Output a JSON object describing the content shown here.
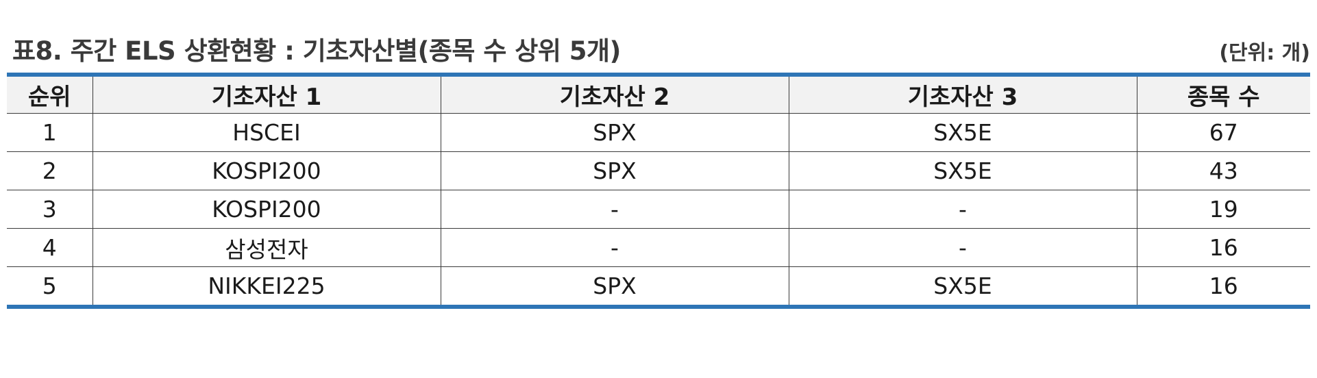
{
  "header": {
    "title": "표8. 주간 ELS 상환현황 : 기초자산별(종목 수 상위 5개)",
    "unit": "(단위: 개)"
  },
  "table": {
    "columns": [
      "순위",
      "기초자산 1",
      "기초자산 2",
      "기초자산 3",
      "종목 수"
    ],
    "rows": [
      [
        "1",
        "HSCEI",
        "SPX",
        "SX5E",
        "67"
      ],
      [
        "2",
        "KOSPI200",
        "SPX",
        "SX5E",
        "43"
      ],
      [
        "3",
        "KOSPI200",
        "-",
        "-",
        "19"
      ],
      [
        "4",
        "삼성전자",
        "-",
        "-",
        "16"
      ],
      [
        "5",
        "NIKKEI225",
        "SPX",
        "SX5E",
        "16"
      ]
    ]
  },
  "colors": {
    "accent": "#2e75b6",
    "header_bg": "#f2f2f2"
  }
}
